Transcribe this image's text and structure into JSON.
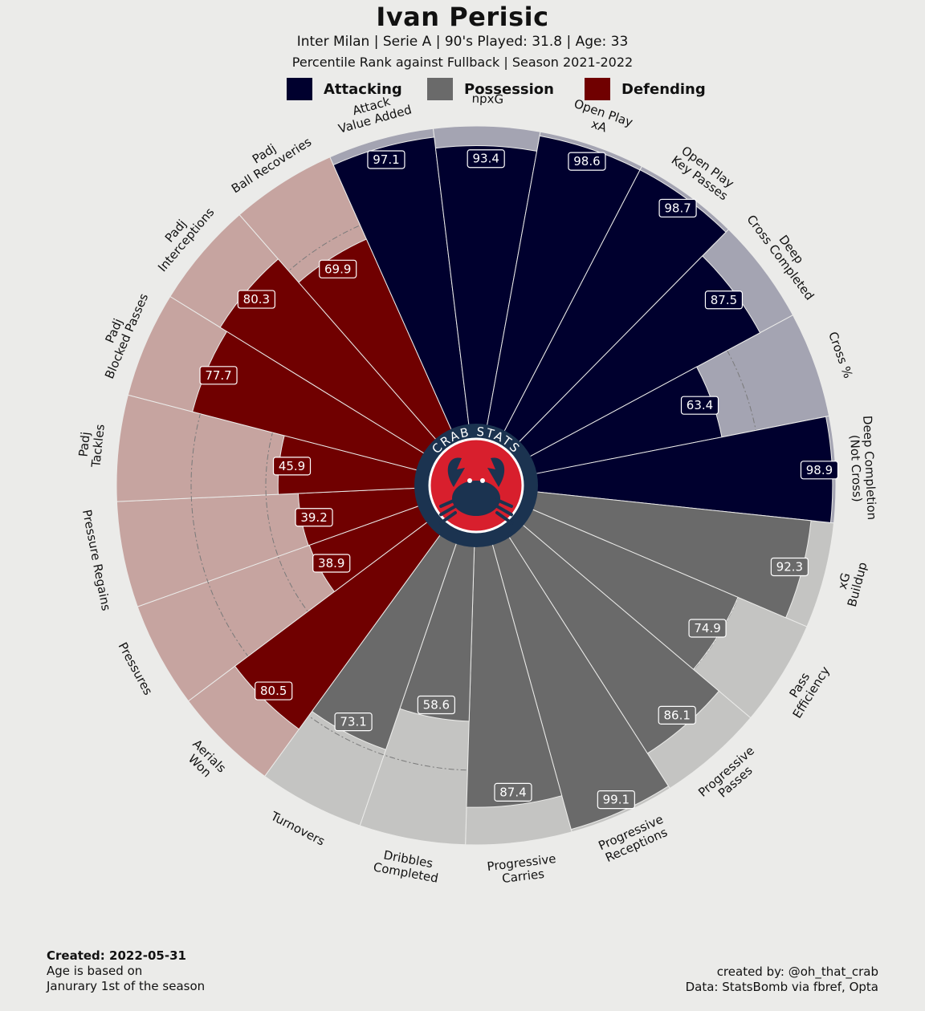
{
  "header": {
    "title": "Ivan Perisic",
    "subtitle": "Inter Milan  | Serie A | 90's Played: 31.8 | Age: 33",
    "subtitle2": "Percentile Rank against Fullback  | Season 2021-2022"
  },
  "legend": [
    {
      "label": "Attacking",
      "color": "#00002e"
    },
    {
      "label": "Possession",
      "color": "#6a6a6a"
    },
    {
      "label": "Defending",
      "color": "#700000"
    }
  ],
  "logo": {
    "text": "CRAB STATS",
    "ring_color": "#1b3350",
    "fill_color": "#d81f2d",
    "icon": "crab-icon"
  },
  "chart_data": {
    "type": "polar-bar",
    "range": [
      0,
      100
    ],
    "grid_rings": [
      25,
      50,
      75
    ],
    "categories": [
      {
        "label": "Attack\nValue Added",
        "value": 97.1,
        "group": "Attacking"
      },
      {
        "label": "npxG",
        "value": 93.4,
        "group": "Attacking"
      },
      {
        "label": "Open Play\nxA",
        "value": 98.6,
        "group": "Attacking"
      },
      {
        "label": "Open Play\nKey Passes",
        "value": 98.7,
        "group": "Attacking"
      },
      {
        "label": "Deep\nCross Completed",
        "value": 87.5,
        "group": "Attacking"
      },
      {
        "label": "Cross %",
        "value": 63.4,
        "group": "Attacking"
      },
      {
        "label": "Deep Completion\n(Not Cross)",
        "value": 98.9,
        "group": "Attacking"
      },
      {
        "label": "xG\nBuildup",
        "value": 92.3,
        "group": "Possession"
      },
      {
        "label": "Pass\nEfficiency",
        "value": 74.9,
        "group": "Possession"
      },
      {
        "label": "Progressive\nPasses",
        "value": 86.1,
        "group": "Possession"
      },
      {
        "label": "Progressive\nReceptions",
        "value": 99.1,
        "group": "Possession"
      },
      {
        "label": "Progressive\nCarries",
        "value": 87.4,
        "group": "Possession"
      },
      {
        "label": "Dribbles\nCompleted",
        "value": 58.6,
        "group": "Possession"
      },
      {
        "label": "Turnovers",
        "value": 73.1,
        "group": "Possession"
      },
      {
        "label": "Aerials\nWon",
        "value": 80.5,
        "group": "Defending"
      },
      {
        "label": "Pressures",
        "value": 38.9,
        "group": "Defending"
      },
      {
        "label": "Pressure Regains",
        "value": 39.2,
        "group": "Defending"
      },
      {
        "label": "Padj\nTackles",
        "value": 45.9,
        "group": "Defending"
      },
      {
        "label": "Padj\nBlocked Passes",
        "value": 77.7,
        "group": "Defending"
      },
      {
        "label": "Padj\nInterceptions",
        "value": 80.3,
        "group": "Defending"
      },
      {
        "label": "Padj\nBall Recoveries",
        "value": 69.9,
        "group": "Defending"
      }
    ],
    "group_colors": {
      "Attacking": {
        "bar": "#00002e",
        "bg": "#a4a4b2"
      },
      "Possession": {
        "bar": "#6a6a6a",
        "bg": "#c4c4c2"
      },
      "Defending": {
        "bar": "#700000",
        "bg": "#c6a4a0"
      }
    }
  },
  "footer": {
    "created": "Created: 2022-05-31",
    "note1": "Age is based on",
    "note2": "Janurary 1st of the season",
    "credit1": "created by: @oh_that_crab",
    "credit2": "Data: StatsBomb via fbref, Opta"
  }
}
